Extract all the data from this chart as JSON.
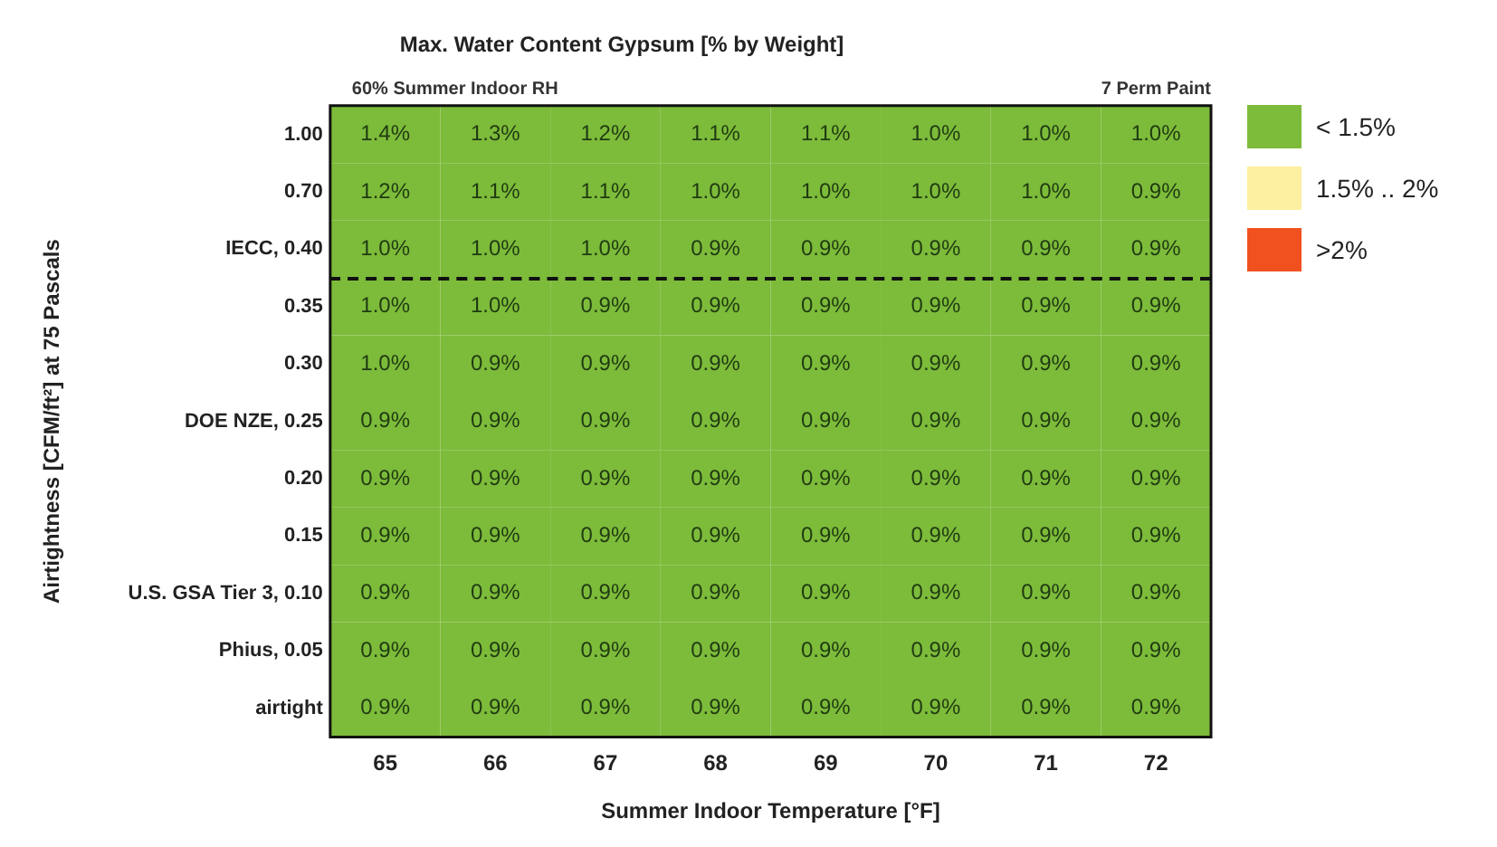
{
  "chart_data": {
    "type": "heatmap",
    "title": "Max. Water Content Gypsum [% by Weight]",
    "xlabel": "Summer Indoor Temperature [°F]",
    "ylabel": "Airtightness [CFM/ft²] at 75 Pascals",
    "annotations": [
      "60% Summer Indoor RH",
      "7 Perm Paint",
      "< 1.5%",
      "1.5% .. 2%",
      ">2%"
    ],
    "categories": [
      "65",
      "66",
      "67",
      "68",
      "69",
      "70",
      "71",
      "72"
    ],
    "y_categories": [
      "1.00",
      "0.70",
      "IECC, 0.40",
      "0.35",
      "0.30",
      "DOE NZE, 0.25",
      "0.20",
      "0.15",
      "U.S. GSA Tier 3, 0.10",
      "Phius, 0.05",
      "airtight"
    ],
    "cells": [
      [
        1.4,
        1.3,
        1.2,
        1.1,
        1.1,
        1.0,
        1.0,
        1.0
      ],
      [
        1.2,
        1.1,
        1.1,
        1.0,
        1.0,
        1.0,
        1.0,
        0.9
      ],
      [
        1.0,
        1.0,
        1.0,
        0.9,
        0.9,
        0.9,
        0.9,
        0.9
      ],
      [
        1.0,
        1.0,
        0.9,
        0.9,
        0.9,
        0.9,
        0.9,
        0.9
      ],
      [
        1.0,
        0.9,
        0.9,
        0.9,
        0.9,
        0.9,
        0.9,
        0.9
      ],
      [
        0.9,
        0.9,
        0.9,
        0.9,
        0.9,
        0.9,
        0.9,
        0.9
      ],
      [
        0.9,
        0.9,
        0.9,
        0.9,
        0.9,
        0.9,
        0.9,
        0.9
      ],
      [
        0.9,
        0.9,
        0.9,
        0.9,
        0.9,
        0.9,
        0.9,
        0.9
      ],
      [
        0.9,
        0.9,
        0.9,
        0.9,
        0.9,
        0.9,
        0.9,
        0.9
      ],
      [
        0.9,
        0.9,
        0.9,
        0.9,
        0.9,
        0.9,
        0.9,
        0.9
      ],
      [
        0.9,
        0.9,
        0.9,
        0.9,
        0.9,
        0.9,
        0.9,
        0.9
      ]
    ],
    "cell_labels": [
      [
        "1.4%",
        "1.3%",
        "1.2%",
        "1.1%",
        "1.1%",
        "1.0%",
        "1.0%",
        "1.0%"
      ],
      [
        "1.2%",
        "1.1%",
        "1.1%",
        "1.0%",
        "1.0%",
        "1.0%",
        "1.0%",
        "0.9%"
      ],
      [
        "1.0%",
        "1.0%",
        "1.0%",
        "0.9%",
        "0.9%",
        "0.9%",
        "0.9%",
        "0.9%"
      ],
      [
        "1.0%",
        "1.0%",
        "0.9%",
        "0.9%",
        "0.9%",
        "0.9%",
        "0.9%",
        "0.9%"
      ],
      [
        "1.0%",
        "0.9%",
        "0.9%",
        "0.9%",
        "0.9%",
        "0.9%",
        "0.9%",
        "0.9%"
      ],
      [
        "0.9%",
        "0.9%",
        "0.9%",
        "0.9%",
        "0.9%",
        "0.9%",
        "0.9%",
        "0.9%"
      ],
      [
        "0.9%",
        "0.9%",
        "0.9%",
        "0.9%",
        "0.9%",
        "0.9%",
        "0.9%",
        "0.9%"
      ],
      [
        "0.9%",
        "0.9%",
        "0.9%",
        "0.9%",
        "0.9%",
        "0.9%",
        "0.9%",
        "0.9%"
      ],
      [
        "0.9%",
        "0.9%",
        "0.9%",
        "0.9%",
        "0.9%",
        "0.9%",
        "0.9%",
        "0.9%"
      ],
      [
        "0.9%",
        "0.9%",
        "0.9%",
        "0.9%",
        "0.9%",
        "0.9%",
        "0.9%",
        "0.9%"
      ],
      [
        "0.9%",
        "0.9%",
        "0.9%",
        "0.9%",
        "0.9%",
        "0.9%",
        "0.9%",
        "0.9%"
      ]
    ],
    "colors": [
      "#7dbb3a",
      "#fdf0a0",
      "#f1511f"
    ],
    "grid": false
  }
}
